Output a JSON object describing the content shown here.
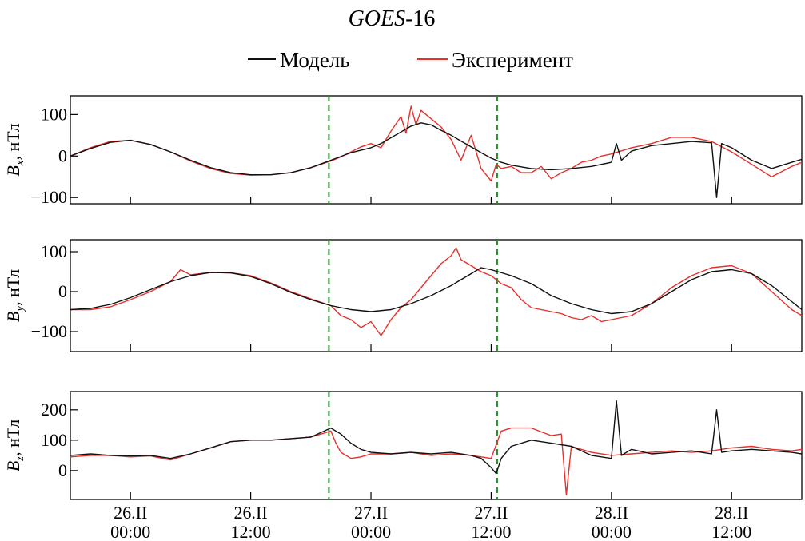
{
  "title_main": "GOES",
  "title_suffix": "-16",
  "colors": {
    "model": "#111111",
    "experiment": "#e8302a",
    "event_lines": "#2e8b2e"
  },
  "chart_data": {
    "type": "line",
    "x_unit": "hours from 26.II 00:00",
    "xlim": [
      -6,
      67
    ],
    "x_ticks": [
      0,
      12,
      24,
      36,
      48,
      60
    ],
    "x_tick_labels": [
      [
        "26.II",
        "00:00"
      ],
      [
        "26.II",
        "12:00"
      ],
      [
        "27.II",
        "00:00"
      ],
      [
        "27.II",
        "12:00"
      ],
      [
        "28.II",
        "00:00"
      ],
      [
        "28.II",
        "12:00"
      ]
    ],
    "event_lines_x": [
      19.8,
      36.6
    ],
    "legend": [
      {
        "label": "Модель",
        "series_index": 0
      },
      {
        "label": "Эксперимент",
        "series_index": 1
      }
    ],
    "panels": [
      {
        "ylabel_var": "B",
        "ylabel_sub": "x",
        "ylabel_unit": ", нТл",
        "ylim": [
          -115,
          145
        ],
        "y_ticks": [
          100,
          0,
          -100
        ],
        "y_tick_labels": [
          "100",
          "0",
          "−100"
        ],
        "series": [
          {
            "name": "Модель",
            "x": [
              -6,
              -4,
              -2,
              0,
              2,
              4,
              6,
              8,
              10,
              12,
              14,
              16,
              18,
              20,
              22,
              24,
              25,
              26,
              27,
              28,
              29,
              30,
              31,
              32,
              33,
              34,
              35,
              36,
              37,
              38,
              39,
              40,
              42,
              44,
              46,
              48,
              48.5,
              49,
              50,
              52,
              54,
              56,
              58,
              58.5,
              59,
              60,
              62,
              64,
              66,
              67
            ],
            "y": [
              0,
              18,
              33,
              38,
              28,
              10,
              -10,
              -28,
              -40,
              -45,
              -45,
              -40,
              -28,
              -10,
              8,
              20,
              30,
              44,
              58,
              72,
              80,
              75,
              62,
              50,
              36,
              22,
              8,
              -5,
              -15,
              -22,
              -26,
              -30,
              -33,
              -30,
              -25,
              -15,
              30,
              -10,
              12,
              25,
              30,
              35,
              32,
              -100,
              30,
              20,
              -10,
              -30,
              -15,
              -8
            ]
          },
          {
            "name": "Эксперимент",
            "x": [
              -6,
              -4,
              -2,
              0,
              2,
              4,
              6,
              8,
              10,
              12,
              14,
              16,
              18,
              20,
              21,
              22,
              23,
              24,
              25,
              26,
              27,
              27.5,
              28,
              28.5,
              29,
              30,
              31,
              32,
              33,
              34,
              35,
              36,
              36.5,
              37,
              38,
              39,
              40,
              41,
              42,
              43,
              44,
              45,
              46,
              47,
              48,
              50,
              52,
              54,
              56,
              58,
              60,
              62,
              64,
              66,
              67
            ],
            "y": [
              0,
              20,
              35,
              38,
              28,
              10,
              -12,
              -30,
              -42,
              -46,
              -45,
              -40,
              -28,
              -12,
              -2,
              10,
              22,
              30,
              20,
              60,
              95,
              55,
              120,
              75,
              110,
              90,
              70,
              40,
              -10,
              50,
              -30,
              -60,
              -20,
              -30,
              -25,
              -40,
              -40,
              -25,
              -55,
              -40,
              -30,
              -15,
              -10,
              0,
              5,
              20,
              30,
              45,
              45,
              35,
              10,
              -20,
              -50,
              -25,
              -15
            ]
          }
        ]
      },
      {
        "ylabel_var": "B",
        "ylabel_sub": "y",
        "ylabel_unit": ", нТл",
        "ylim": [
          -150,
          130
        ],
        "y_ticks": [
          100,
          0,
          -100
        ],
        "y_tick_labels": [
          "100",
          "0",
          "−100"
        ],
        "series": [
          {
            "name": "Модель",
            "x": [
              -6,
              -4,
              -2,
              0,
              2,
              4,
              6,
              8,
              10,
              12,
              14,
              16,
              18,
              20,
              22,
              24,
              26,
              28,
              30,
              32,
              33,
              34,
              35,
              36,
              38,
              40,
              42,
              44,
              46,
              48,
              50,
              52,
              54,
              56,
              58,
              60,
              62,
              64,
              66,
              67
            ],
            "y": [
              -45,
              -42,
              -32,
              -15,
              5,
              25,
              40,
              48,
              47,
              38,
              20,
              -2,
              -20,
              -35,
              -45,
              -50,
              -45,
              -30,
              -10,
              15,
              30,
              45,
              60,
              55,
              40,
              20,
              -10,
              -30,
              -45,
              -55,
              -50,
              -30,
              0,
              30,
              50,
              55,
              45,
              15,
              -25,
              -45
            ]
          },
          {
            "name": "Эксперимент",
            "x": [
              -6,
              -4,
              -2,
              0,
              2,
              4,
              5,
              6,
              8,
              10,
              12,
              14,
              16,
              18,
              20,
              21,
              22,
              23,
              24,
              25,
              26,
              27,
              28,
              29,
              30,
              31,
              32,
              32.5,
              33,
              34,
              35,
              36,
              37,
              38,
              39,
              40,
              41,
              42,
              43,
              44,
              45,
              46,
              47,
              48,
              50,
              52,
              54,
              56,
              58,
              60,
              62,
              64,
              66,
              67
            ],
            "y": [
              -45,
              -45,
              -38,
              -20,
              0,
              25,
              55,
              42,
              48,
              47,
              40,
              22,
              0,
              -18,
              -35,
              -60,
              -70,
              -90,
              -75,
              -110,
              -70,
              -40,
              -20,
              10,
              40,
              70,
              90,
              110,
              80,
              65,
              50,
              40,
              20,
              10,
              -20,
              -40,
              -45,
              -50,
              -55,
              -65,
              -70,
              -60,
              -75,
              -70,
              -60,
              -30,
              10,
              40,
              60,
              65,
              45,
              0,
              -45,
              -60
            ]
          }
        ]
      },
      {
        "ylabel_var": "B",
        "ylabel_sub": "z",
        "ylabel_unit": ", нТл",
        "ylim": [
          -95,
          260
        ],
        "y_ticks": [
          200,
          100,
          0
        ],
        "y_tick_labels": [
          "200",
          "100",
          "0"
        ],
        "series": [
          {
            "name": "Модель",
            "x": [
              -6,
              -4,
              -2,
              0,
              2,
              4,
              6,
              8,
              10,
              12,
              14,
              16,
              18,
              20,
              21,
              22,
              23,
              24,
              26,
              28,
              30,
              32,
              34,
              35,
              36,
              36.5,
              37,
              38,
              40,
              42,
              44,
              46,
              48,
              48.5,
              49,
              50,
              52,
              54,
              56,
              58,
              58.5,
              59,
              60,
              62,
              64,
              66,
              67
            ],
            "y": [
              50,
              55,
              50,
              48,
              50,
              40,
              55,
              75,
              95,
              100,
              100,
              105,
              110,
              140,
              120,
              90,
              70,
              60,
              55,
              60,
              55,
              60,
              50,
              40,
              10,
              -10,
              40,
              80,
              100,
              90,
              80,
              50,
              40,
              230,
              50,
              70,
              55,
              60,
              65,
              55,
              200,
              60,
              65,
              70,
              65,
              60,
              55
            ]
          },
          {
            "name": "Эксперимент",
            "x": [
              -6,
              -4,
              -2,
              0,
              2,
              4,
              6,
              8,
              10,
              12,
              14,
              16,
              18,
              20,
              20.5,
              21,
              22,
              23,
              24,
              26,
              28,
              30,
              32,
              34,
              36,
              37,
              38,
              40,
              42,
              43,
              43.5,
              44,
              46,
              48,
              50,
              52,
              54,
              56,
              58,
              60,
              62,
              64,
              66,
              67
            ],
            "y": [
              45,
              50,
              50,
              45,
              48,
              35,
              55,
              75,
              95,
              100,
              100,
              105,
              110,
              130,
              90,
              60,
              40,
              45,
              55,
              55,
              60,
              50,
              55,
              50,
              40,
              130,
              140,
              140,
              115,
              120,
              -80,
              80,
              60,
              50,
              55,
              60,
              65,
              60,
              65,
              75,
              80,
              70,
              65,
              70
            ]
          }
        ]
      }
    ]
  }
}
